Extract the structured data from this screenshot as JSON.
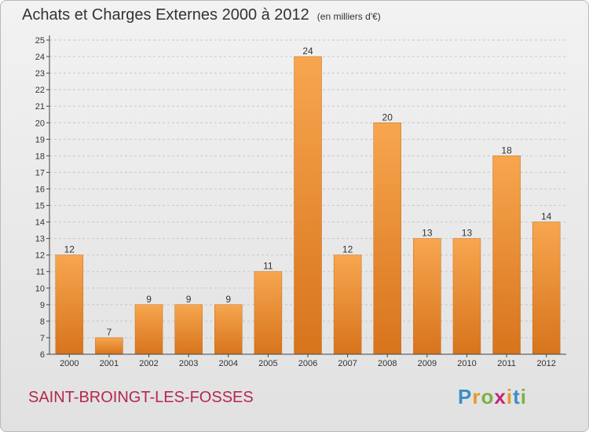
{
  "header": {
    "title": "Achats et Charges Externes 2000 à 2012",
    "unit": "(en milliers d'€)"
  },
  "footer": {
    "commune": "SAINT-BROINGT-LES-FOSSES"
  },
  "logo": {
    "letters": [
      "P",
      "r",
      "o",
      "x",
      "i",
      "t",
      "i"
    ],
    "colors": [
      "#3a8fc7",
      "#e39a2c",
      "#7bb043",
      "#c0267a",
      "#e39a2c",
      "#3a8fc7",
      "#7bb043"
    ]
  },
  "colors": {
    "bar_light": "#f7a64f",
    "bar_dark": "#d7741c",
    "grid": "#c8c8c8",
    "axis": "#444444",
    "text": "#333333"
  },
  "chart_data": {
    "type": "bar",
    "title": "Achats et Charges Externes 2000 à 2012",
    "categories": [
      "2000",
      "2001",
      "2002",
      "2003",
      "2004",
      "2005",
      "2006",
      "2007",
      "2008",
      "2009",
      "2010",
      "2011",
      "2012"
    ],
    "values": [
      12,
      7,
      9,
      9,
      9,
      11,
      24,
      12,
      20,
      13,
      13,
      18,
      14
    ],
    "data_labels": [
      "12",
      "7",
      "9",
      "9",
      "9",
      "11",
      "24",
      "12",
      "20",
      "13",
      "13",
      "18",
      "14"
    ],
    "ylim": [
      6,
      25
    ],
    "yticks": [
      6,
      7,
      8,
      9,
      10,
      11,
      12,
      13,
      14,
      15,
      16,
      17,
      18,
      19,
      20,
      21,
      22,
      23,
      24,
      25
    ],
    "grid": true,
    "legend": "none",
    "xlabel": "",
    "ylabel": ""
  }
}
